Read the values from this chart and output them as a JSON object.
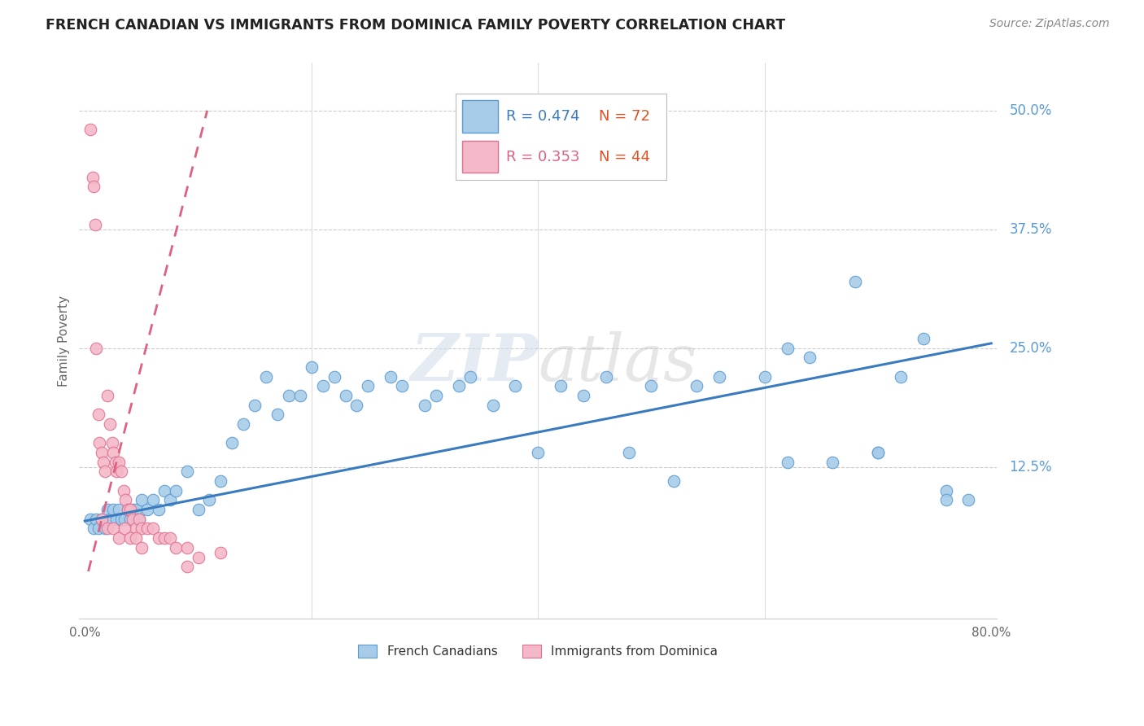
{
  "title": "FRENCH CANADIAN VS IMMIGRANTS FROM DOMINICA FAMILY POVERTY CORRELATION CHART",
  "source": "Source: ZipAtlas.com",
  "ylabel": "Family Poverty",
  "yticks": [
    0.0,
    0.125,
    0.25,
    0.375,
    0.5
  ],
  "ytick_labels": [
    "",
    "12.5%",
    "25.0%",
    "37.5%",
    "50.0%"
  ],
  "xlim": [
    0.0,
    0.8
  ],
  "ylim": [
    -0.035,
    0.55
  ],
  "watermark_zip": "ZIP",
  "watermark_atlas": "atlas",
  "legend_r1": "R = 0.474",
  "legend_n1": "N = 72",
  "legend_r2": "R = 0.353",
  "legend_n2": "N = 44",
  "color_blue_fill": "#a8cce8",
  "color_blue_edge": "#5b9bd5",
  "color_pink_fill": "#f4b8c8",
  "color_pink_edge": "#e07090",
  "color_line_blue": "#3a7bbf",
  "color_line_pink": "#e06080",
  "color_ytick": "#5b9bd5",
  "french_canadian_x": [
    0.005,
    0.008,
    0.01,
    0.012,
    0.015,
    0.018,
    0.02,
    0.022,
    0.025,
    0.028,
    0.03,
    0.032,
    0.035,
    0.038,
    0.04,
    0.042,
    0.045,
    0.048,
    0.05,
    0.055,
    0.06,
    0.065,
    0.07,
    0.075,
    0.08,
    0.09,
    0.1,
    0.11,
    0.12,
    0.13,
    0.14,
    0.15,
    0.16,
    0.17,
    0.18,
    0.19,
    0.2,
    0.21,
    0.22,
    0.23,
    0.24,
    0.25,
    0.27,
    0.28,
    0.3,
    0.31,
    0.33,
    0.34,
    0.36,
    0.38,
    0.4,
    0.42,
    0.44,
    0.46,
    0.48,
    0.5,
    0.52,
    0.54,
    0.56,
    0.6,
    0.62,
    0.64,
    0.66,
    0.68,
    0.7,
    0.72,
    0.74,
    0.76,
    0.78,
    0.62,
    0.7,
    0.76
  ],
  "french_canadian_y": [
    0.07,
    0.06,
    0.07,
    0.06,
    0.07,
    0.06,
    0.08,
    0.07,
    0.08,
    0.07,
    0.08,
    0.07,
    0.07,
    0.08,
    0.07,
    0.08,
    0.08,
    0.07,
    0.09,
    0.08,
    0.09,
    0.08,
    0.1,
    0.09,
    0.1,
    0.12,
    0.08,
    0.09,
    0.11,
    0.15,
    0.17,
    0.19,
    0.22,
    0.18,
    0.2,
    0.2,
    0.23,
    0.21,
    0.22,
    0.2,
    0.19,
    0.21,
    0.22,
    0.21,
    0.19,
    0.2,
    0.21,
    0.22,
    0.19,
    0.21,
    0.14,
    0.21,
    0.2,
    0.22,
    0.14,
    0.21,
    0.11,
    0.21,
    0.22,
    0.22,
    0.25,
    0.24,
    0.13,
    0.32,
    0.14,
    0.22,
    0.26,
    0.1,
    0.09,
    0.13,
    0.14,
    0.09
  ],
  "dominica_x": [
    0.005,
    0.007,
    0.008,
    0.009,
    0.01,
    0.012,
    0.013,
    0.015,
    0.016,
    0.018,
    0.02,
    0.022,
    0.024,
    0.025,
    0.027,
    0.028,
    0.03,
    0.032,
    0.034,
    0.036,
    0.038,
    0.04,
    0.042,
    0.045,
    0.048,
    0.05,
    0.055,
    0.06,
    0.065,
    0.07,
    0.075,
    0.08,
    0.09,
    0.1,
    0.12,
    0.015,
    0.02,
    0.025,
    0.03,
    0.035,
    0.04,
    0.045,
    0.05,
    0.09
  ],
  "dominica_y": [
    0.48,
    0.43,
    0.42,
    0.38,
    0.25,
    0.18,
    0.15,
    0.14,
    0.13,
    0.12,
    0.2,
    0.17,
    0.15,
    0.14,
    0.13,
    0.12,
    0.13,
    0.12,
    0.1,
    0.09,
    0.08,
    0.08,
    0.07,
    0.06,
    0.07,
    0.06,
    0.06,
    0.06,
    0.05,
    0.05,
    0.05,
    0.04,
    0.04,
    0.03,
    0.035,
    0.07,
    0.06,
    0.06,
    0.05,
    0.06,
    0.05,
    0.05,
    0.04,
    0.02
  ],
  "blue_trend_x0": 0.0,
  "blue_trend_x1": 0.8,
  "blue_trend_y0": 0.068,
  "blue_trend_y1": 0.255,
  "pink_trend_x0": 0.003,
  "pink_trend_x1": 0.108,
  "pink_trend_y0": 0.015,
  "pink_trend_y1": 0.5
}
